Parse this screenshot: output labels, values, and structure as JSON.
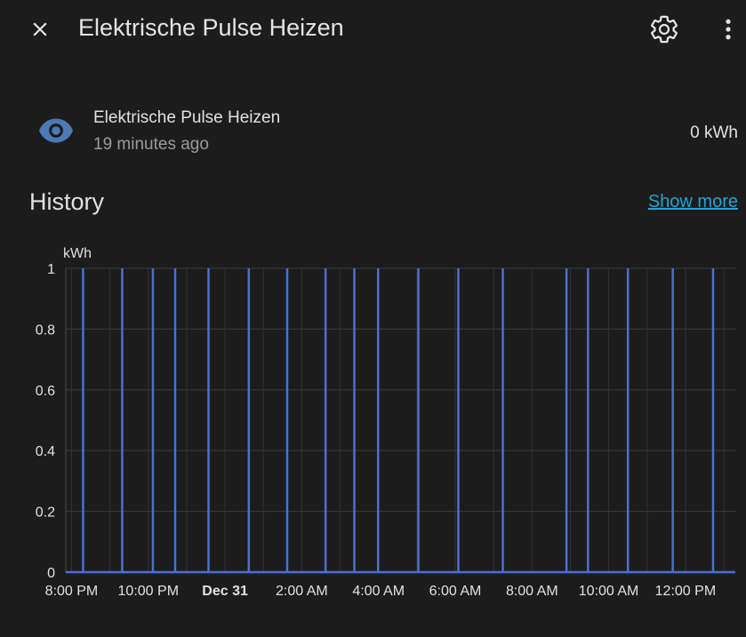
{
  "dialog": {
    "title": "Elektrische Pulse Heizen",
    "close_icon": "close-icon",
    "settings_icon": "gear-icon",
    "more_icon": "more-vertical-icon"
  },
  "entity": {
    "icon": "eye-icon",
    "icon_color": "#4a7ab7",
    "name": "Elektrische Pulse Heizen",
    "last_changed": "19 minutes ago",
    "state": "0 kWh"
  },
  "history": {
    "title": "History",
    "show_more_label": "Show more",
    "link_color": "#1fa5d4"
  },
  "chart_data": {
    "type": "line",
    "ylabel": "kWh",
    "ylim": [
      0,
      1
    ],
    "yticks": [
      "0",
      "0.2",
      "0.4",
      "0.6",
      "0.8",
      "1"
    ],
    "xticks": [
      "8:00 PM",
      "10:00 PM",
      "Dec 31",
      "2:00 AM",
      "4:00 AM",
      "6:00 AM",
      "8:00 AM",
      "10:00 AM",
      "12:00 PM"
    ],
    "xtick_hours": [
      20,
      22,
      24,
      26,
      28,
      30,
      32,
      34,
      36
    ],
    "xlim_hours": [
      19.85,
      37.3
    ],
    "grid": true,
    "line_color": "#4a6fd6",
    "series": [
      {
        "baseline": 0,
        "pulse_value": 1,
        "pulse_hours": [
          20.3,
          21.32,
          22.12,
          22.7,
          23.57,
          24.62,
          25.62,
          26.62,
          27.37,
          27.99,
          29.04,
          30.08,
          31.24,
          32.9,
          33.46,
          34.5,
          35.67,
          36.72
        ]
      }
    ]
  }
}
